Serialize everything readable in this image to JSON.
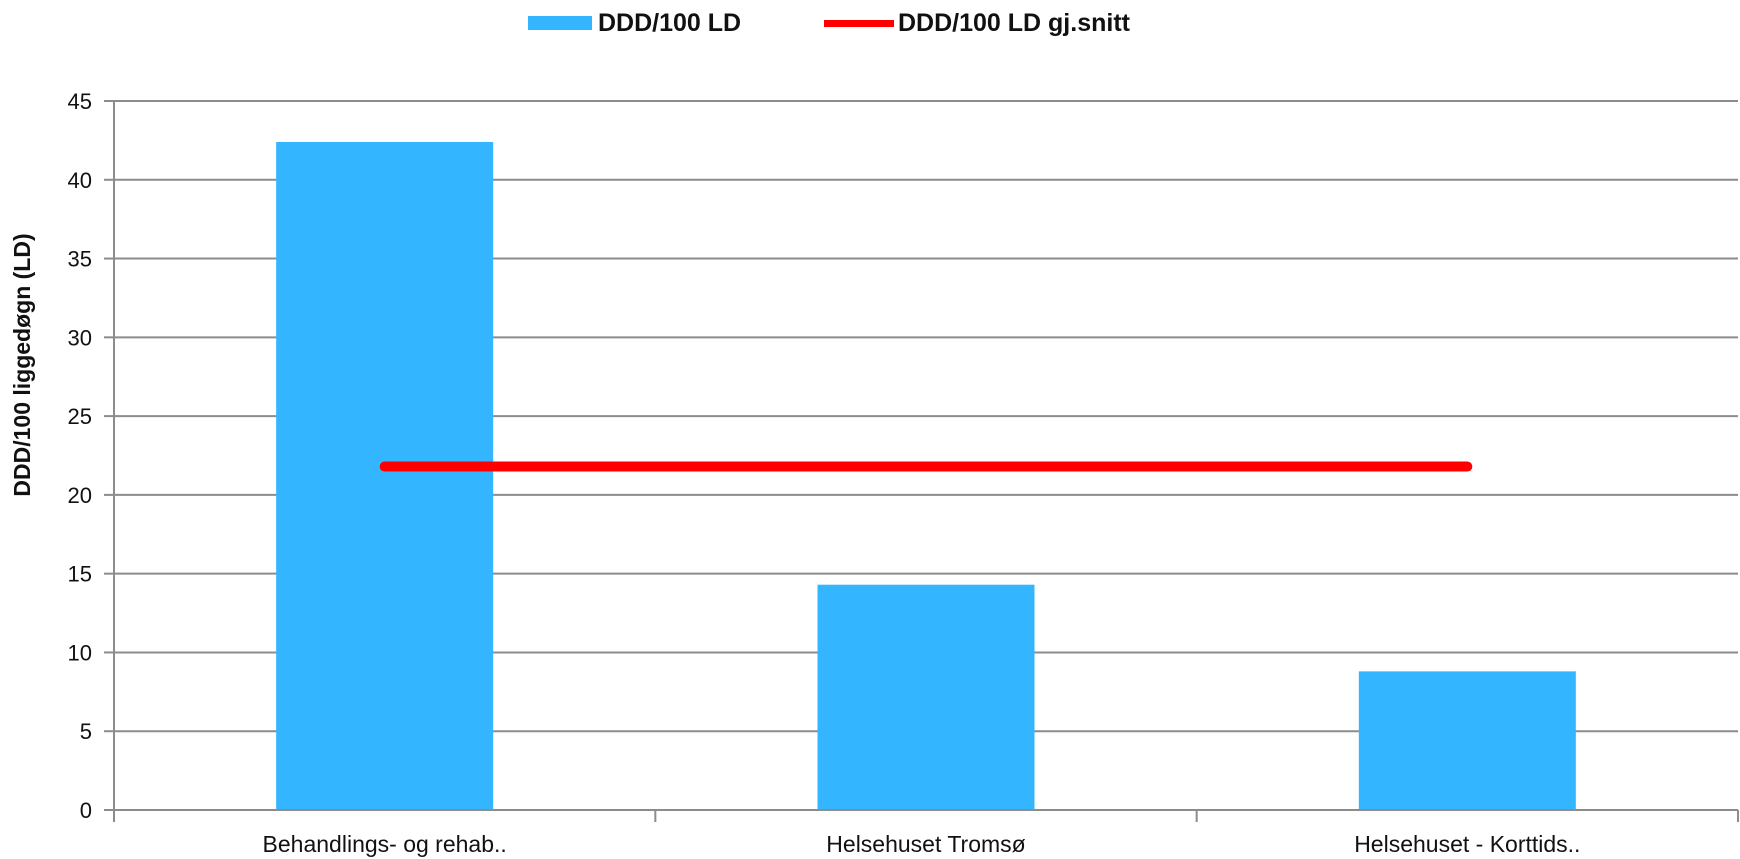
{
  "chart_data": {
    "type": "bar",
    "title": "",
    "xlabel": "",
    "ylabel": "DDD/100 liggedøgn (LD)",
    "ylim": [
      0,
      45
    ],
    "yticks": [
      0,
      5,
      10,
      15,
      20,
      25,
      30,
      35,
      40,
      45
    ],
    "grid": true,
    "legend_position": "top",
    "categories": [
      "Behandlings- og rehab..",
      "Helsehuset Tromsø",
      "Helsehuset - Korttids.."
    ],
    "series": [
      {
        "name": "DDD/100 LD",
        "type": "bar",
        "color": "#33b6ff",
        "values": [
          42.4,
          14.3,
          8.8
        ]
      },
      {
        "name": "DDD/100 LD gj.snitt",
        "type": "line",
        "color": "#ff0000",
        "values": [
          21.8,
          21.8,
          21.8
        ]
      }
    ]
  }
}
